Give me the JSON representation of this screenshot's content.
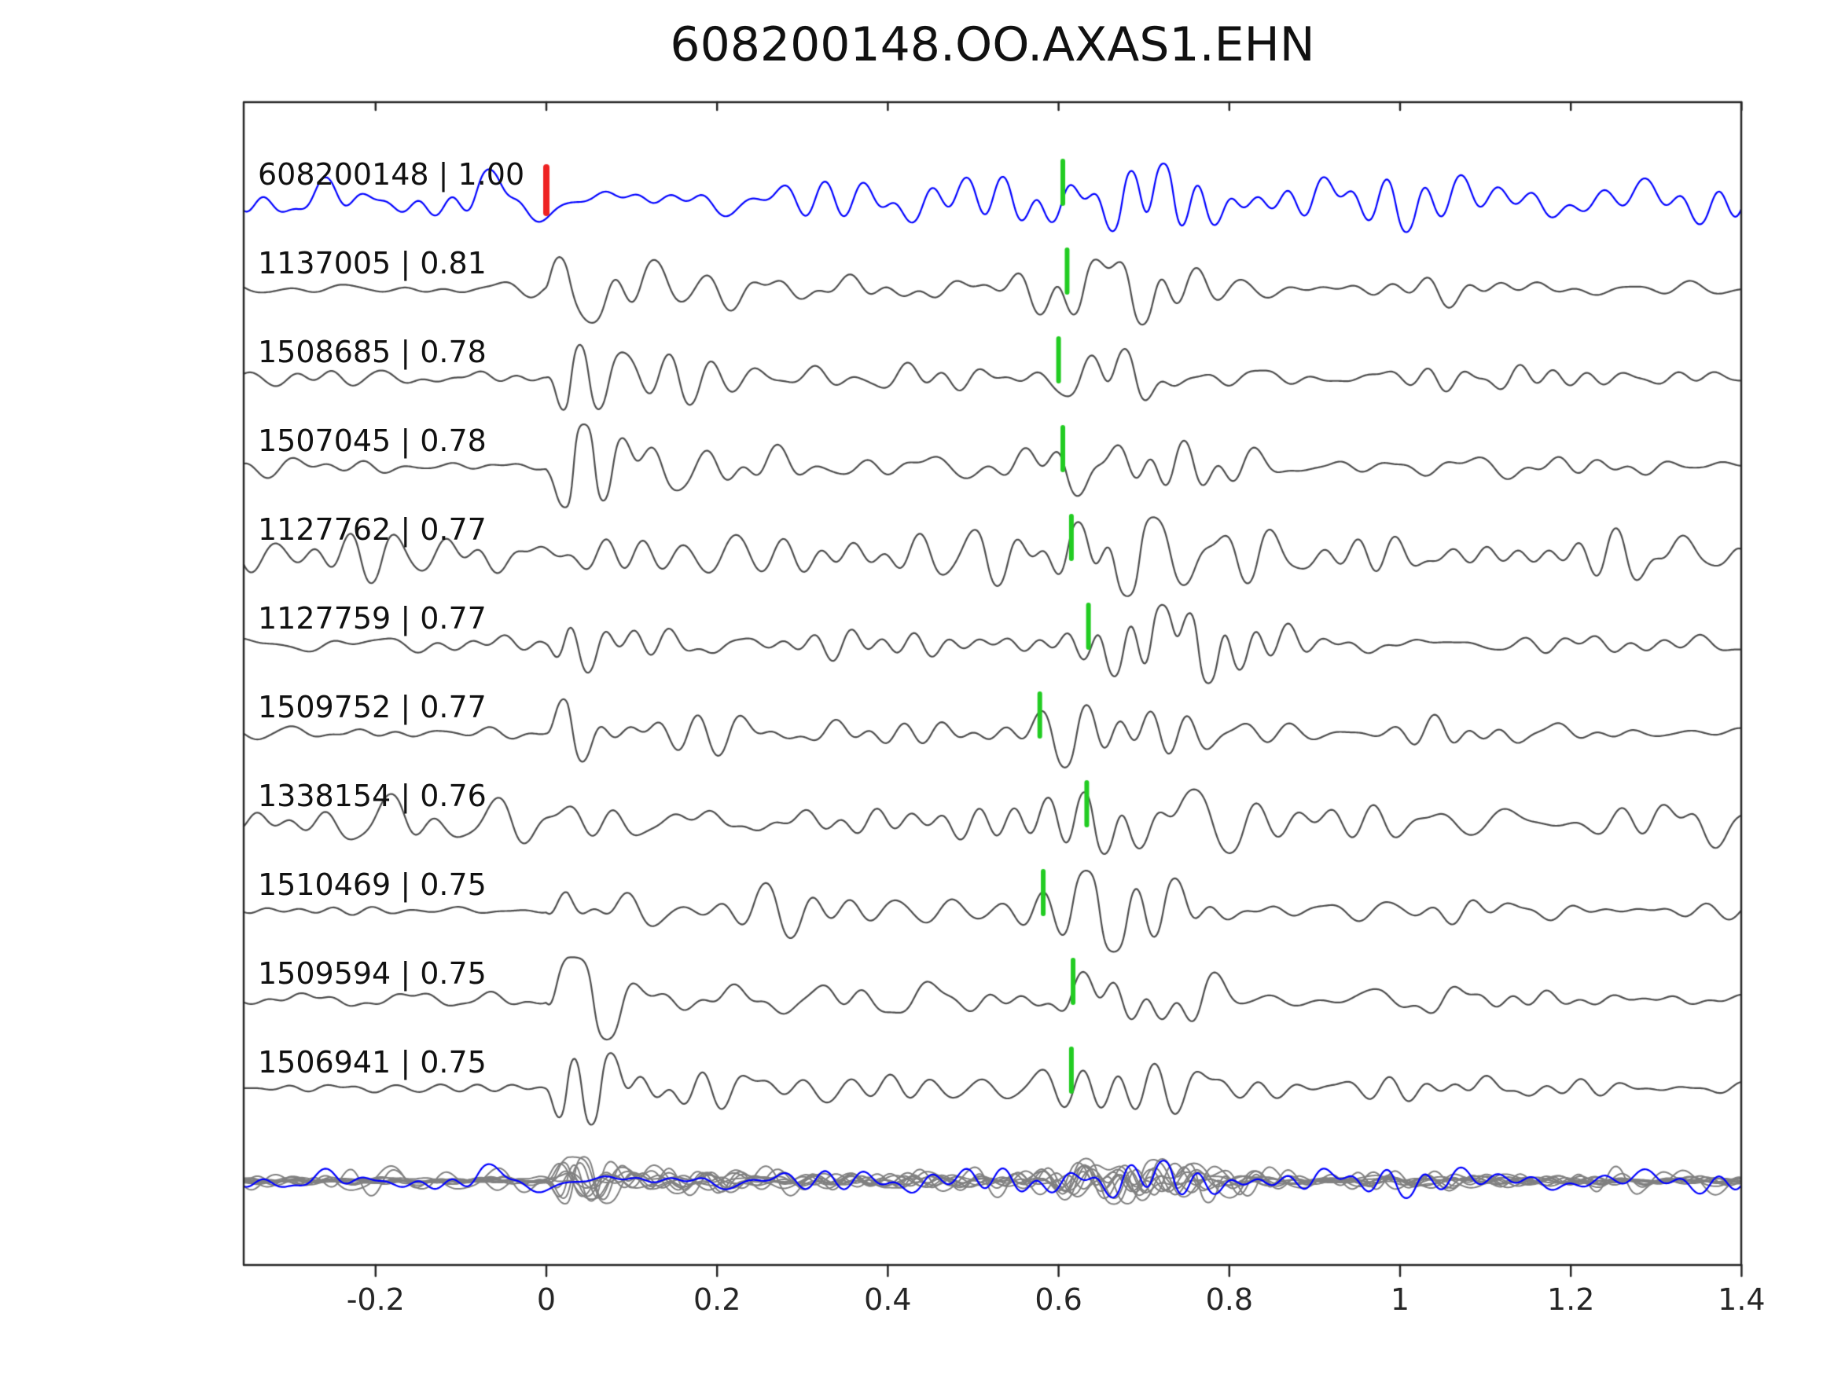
{
  "title": "608200148.OO.AXAS1.EHN",
  "chart_data": {
    "type": "line",
    "title": "608200148.OO.AXAS1.EHN",
    "description": "Stacked seismic waveform traces: template event on top (blue), correlated detections below (gray), all traces overlaid on bottom row. Green ticks are picks, red tick is template origin pick.",
    "xlim": [
      -0.355,
      1.4
    ],
    "x_tick_values": [
      -0.2,
      0,
      0.2,
      0.4,
      0.6,
      0.8,
      1.0,
      1.2,
      1.4
    ],
    "x_tick_labels": [
      "-0.2",
      "0",
      "0.2",
      "0.4",
      "0.6",
      "0.8",
      "1",
      "1.2",
      "1.4"
    ],
    "grid": false,
    "legend": "none",
    "colors": {
      "template": "#0000ff",
      "detection": "#4d4d4d",
      "overlay_detection": "#808080",
      "pick": "#22cc22",
      "template_pick": "#ee2222",
      "axis": "#262626",
      "text": "#111111"
    },
    "traces": [
      {
        "id": "608200148",
        "cc": "1.00",
        "label": "608200148 | 1.00",
        "role": "template",
        "character": "template",
        "pick_time": 0.605,
        "template_pick_time": 0.0
      },
      {
        "id": "1137005",
        "cc": "0.81",
        "label": "1137005 | 0.81",
        "role": "detection",
        "character": "impulsive",
        "pick_time": 0.61
      },
      {
        "id": "1508685",
        "cc": "0.78",
        "label": "1508685 | 0.78",
        "role": "detection",
        "character": "impulsive",
        "pick_time": 0.6
      },
      {
        "id": "1507045",
        "cc": "0.78",
        "label": "1507045 | 0.78",
        "role": "detection",
        "character": "impulsive",
        "pick_time": 0.605
      },
      {
        "id": "1127762",
        "cc": "0.77",
        "label": "1127762 | 0.77",
        "role": "detection",
        "character": "noisy",
        "pick_time": 0.615
      },
      {
        "id": "1127759",
        "cc": "0.77",
        "label": "1127759 | 0.77",
        "role": "detection",
        "character": "emergent",
        "pick_time": 0.635
      },
      {
        "id": "1509752",
        "cc": "0.77",
        "label": "1509752 | 0.77",
        "role": "detection",
        "character": "impulsive",
        "pick_time": 0.578
      },
      {
        "id": "1338154",
        "cc": "0.76",
        "label": "1338154 | 0.76",
        "role": "detection",
        "character": "noisy",
        "pick_time": 0.633
      },
      {
        "id": "1510469",
        "cc": "0.75",
        "label": "1510469 | 0.75",
        "role": "detection",
        "character": "impulsive",
        "pick_time": 0.582
      },
      {
        "id": "1509594",
        "cc": "0.75",
        "label": "1509594 | 0.75",
        "role": "detection",
        "character": "impulsive",
        "pick_time": 0.617
      },
      {
        "id": "1506941",
        "cc": "0.75",
        "label": "1506941 | 0.75",
        "role": "detection",
        "character": "impulsive",
        "pick_time": 0.615
      }
    ],
    "overlay_row": {
      "includes": "all detection traces plus template",
      "label": ""
    }
  }
}
